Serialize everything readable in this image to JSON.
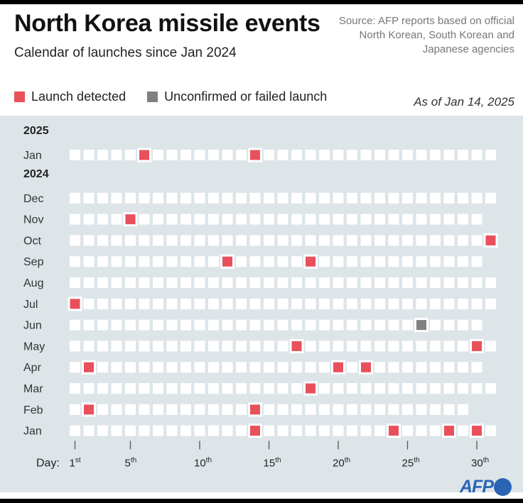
{
  "header": {
    "title": "North Korea missile events",
    "subtitle": "Calendar of launches since Jan 2024",
    "source": "Source: AFP reports based on official North Korean, South Korean and Japanese agencies",
    "as_of": "As of Jan 14, 2025"
  },
  "legend": {
    "launch_label": "Launch detected",
    "failed_label": "Unconfirmed or failed launch"
  },
  "colors": {
    "launch": "#e8505b",
    "failed": "#808080",
    "empty_cell": "#ffffff",
    "panel_bg": "#dde5e9"
  },
  "chart_data": {
    "type": "heatmap",
    "title": "North Korea missile events",
    "subtitle": "Calendar of launches since Jan 2024",
    "x_axis_label": "Day:",
    "x_ticks": [
      {
        "day": 1,
        "num": "1",
        "suffix": "st"
      },
      {
        "day": 5,
        "num": "5",
        "suffix": "th"
      },
      {
        "day": 10,
        "num": "10",
        "suffix": "th"
      },
      {
        "day": 15,
        "num": "15",
        "suffix": "th"
      },
      {
        "day": 20,
        "num": "20",
        "suffix": "th"
      },
      {
        "day": 25,
        "num": "25",
        "suffix": "th"
      },
      {
        "day": 30,
        "num": "30",
        "suffix": "th"
      }
    ],
    "groups": [
      {
        "year": "2025",
        "months": [
          {
            "month": "Jan",
            "days": 31,
            "launches": [
              6,
              14
            ],
            "failed": []
          }
        ]
      },
      {
        "year": "2024",
        "months": [
          {
            "month": "Dec",
            "days": 31,
            "launches": [],
            "failed": []
          },
          {
            "month": "Nov",
            "days": 30,
            "launches": [
              5
            ],
            "failed": []
          },
          {
            "month": "Oct",
            "days": 31,
            "launches": [
              31
            ],
            "failed": []
          },
          {
            "month": "Sep",
            "days": 30,
            "launches": [
              12,
              18
            ],
            "failed": []
          },
          {
            "month": "Aug",
            "days": 31,
            "launches": [],
            "failed": []
          },
          {
            "month": "Jul",
            "days": 31,
            "launches": [
              1
            ],
            "failed": []
          },
          {
            "month": "Jun",
            "days": 30,
            "launches": [],
            "failed": [
              26
            ]
          },
          {
            "month": "May",
            "days": 31,
            "launches": [
              17,
              30
            ],
            "failed": []
          },
          {
            "month": "Apr",
            "days": 30,
            "launches": [
              2,
              20,
              22
            ],
            "failed": []
          },
          {
            "month": "Mar",
            "days": 31,
            "launches": [
              18
            ],
            "failed": []
          },
          {
            "month": "Feb",
            "days": 29,
            "launches": [
              2,
              14
            ],
            "failed": []
          },
          {
            "month": "Jan",
            "days": 31,
            "launches": [
              14,
              24,
              28,
              30
            ],
            "failed": []
          }
        ]
      }
    ]
  },
  "logo": {
    "text": "AFP"
  }
}
